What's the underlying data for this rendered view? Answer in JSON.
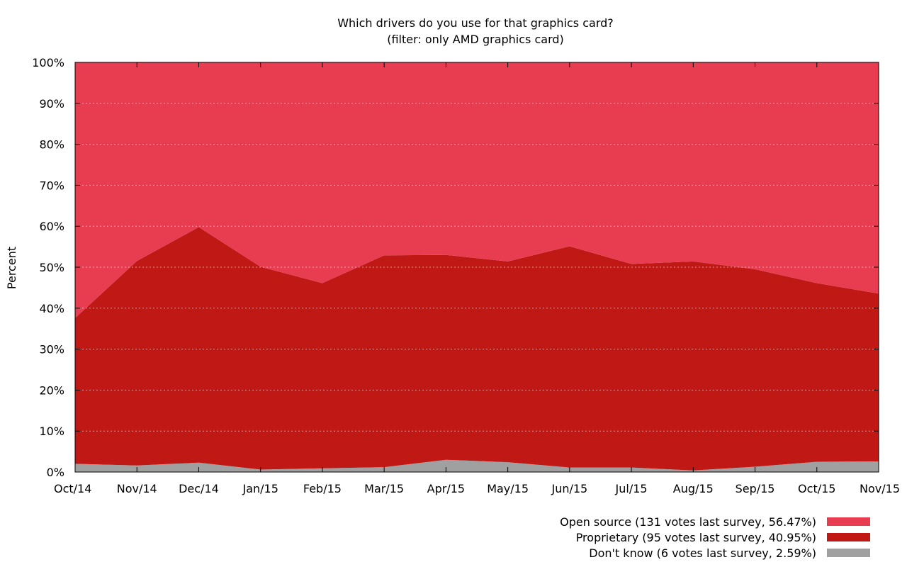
{
  "chart_data": {
    "type": "area",
    "stacked": true,
    "normalized_percent": true,
    "title": "Which drivers do you use for that graphics card?",
    "subtitle": "(filter: only AMD graphics card)",
    "xlabel": "",
    "ylabel": "Percent",
    "ylim": [
      0,
      100
    ],
    "y_ticks": [
      0,
      10,
      20,
      30,
      40,
      50,
      60,
      70,
      80,
      90,
      100
    ],
    "y_tick_labels": [
      "0%",
      "10%",
      "20%",
      "30%",
      "40%",
      "50%",
      "60%",
      "70%",
      "80%",
      "90%",
      "100%"
    ],
    "categories": [
      "Oct/14",
      "Nov/14",
      "Dec/14",
      "Jan/15",
      "Feb/15",
      "Mar/15",
      "Apr/15",
      "May/15",
      "Jun/15",
      "Jul/15",
      "Aug/15",
      "Sep/15",
      "Oct/15",
      "Nov/15"
    ],
    "grid": true,
    "legend_position": "bottom-right",
    "series": [
      {
        "name": "Don't know (6 votes last survey, 2.59%)",
        "color": "#a0a0a0",
        "values": [
          2.0,
          1.6,
          2.3,
          0.6,
          0.9,
          1.2,
          3.0,
          2.4,
          1.1,
          1.1,
          0.4,
          1.3,
          2.5,
          2.59
        ]
      },
      {
        "name": "Proprietary (95 votes last survey, 40.95%)",
        "color": "#c01815",
        "values": [
          35.6,
          49.9,
          57.5,
          49.5,
          45.2,
          51.7,
          50.0,
          49.0,
          54.0,
          49.7,
          51.0,
          48.2,
          43.6,
          40.95
        ]
      },
      {
        "name": "Open source (131 votes last survey, 56.47%)",
        "color": "#e83c50",
        "values": [
          62.4,
          48.5,
          40.2,
          49.9,
          53.9,
          47.1,
          47.0,
          48.6,
          44.9,
          49.2,
          48.6,
          50.5,
          53.9,
          56.47
        ]
      }
    ],
    "legend_order": [
      "Open source (131 votes last survey, 56.47%)",
      "Proprietary (95 votes last survey, 40.95%)",
      "Don't know (6 votes last survey, 2.59%)"
    ]
  }
}
